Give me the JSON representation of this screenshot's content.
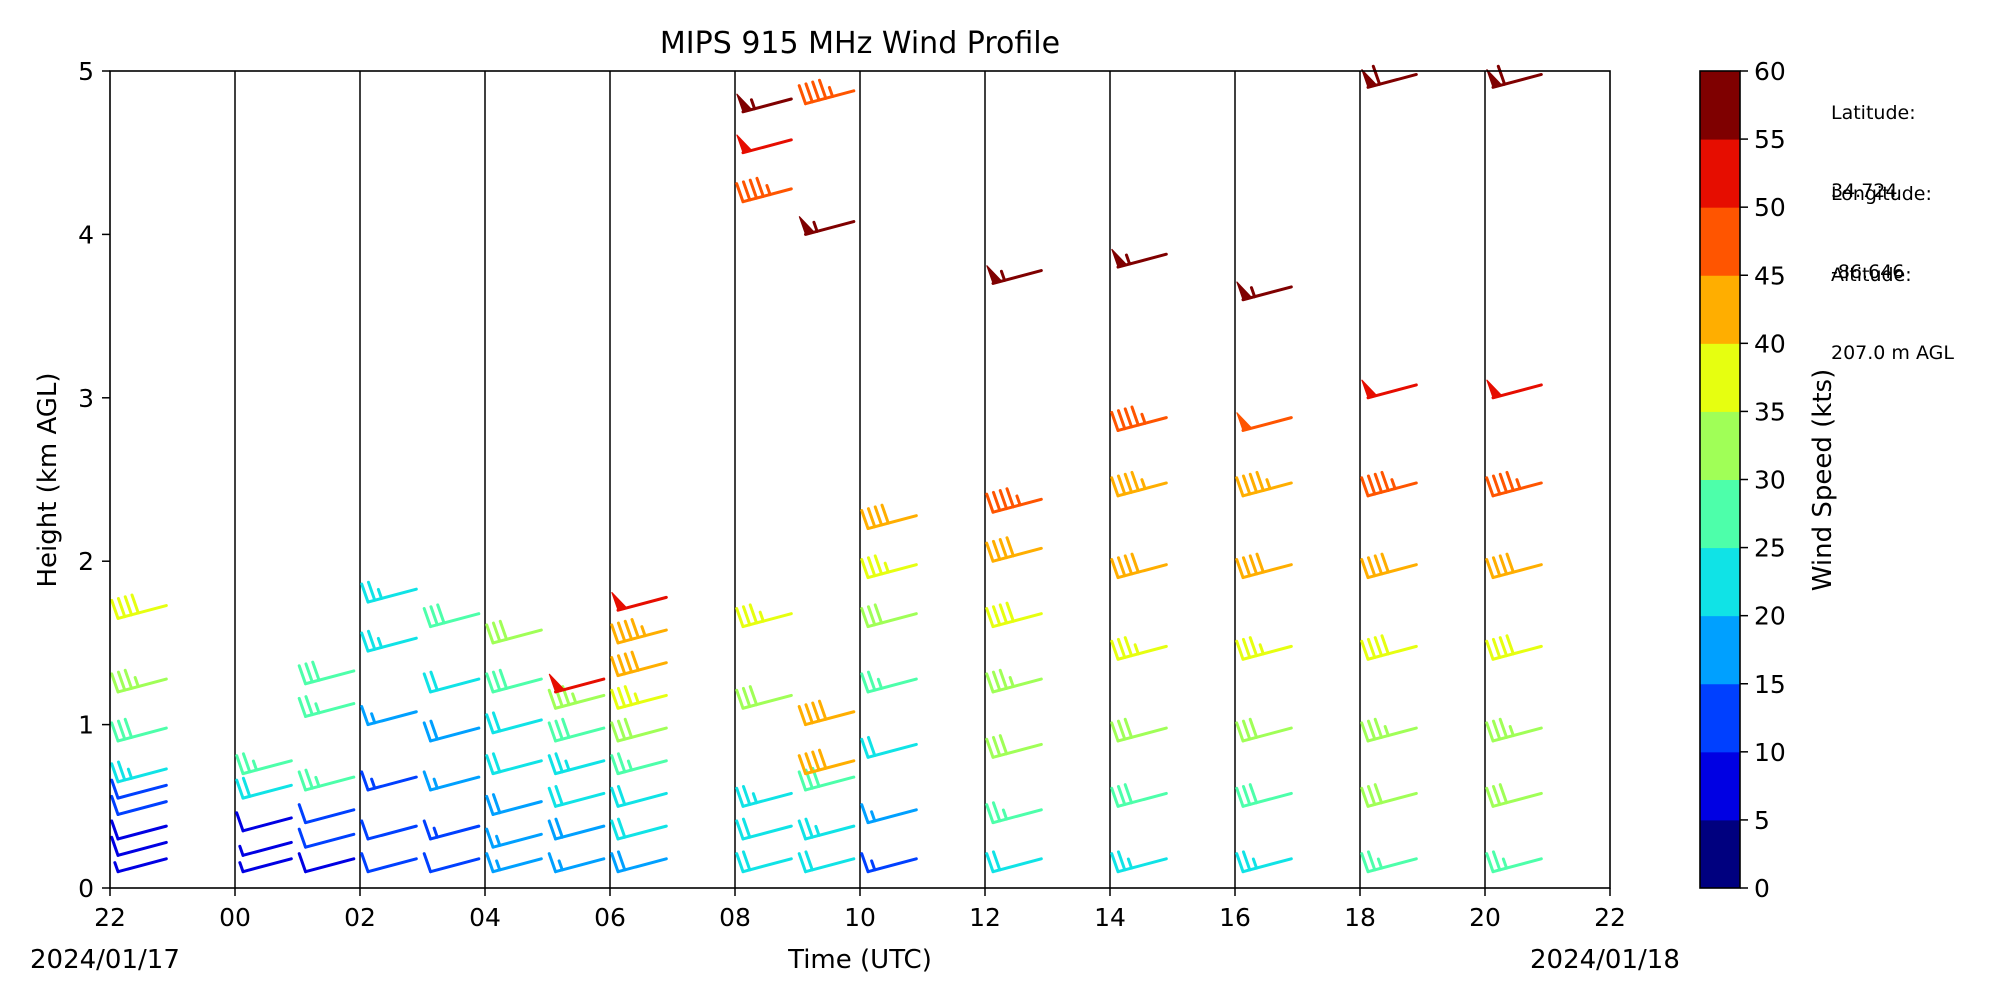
{
  "chart_data": {
    "type": "scatter",
    "title": "MIPS 915 MHz Wind Profile",
    "xlabel": "Time (UTC)",
    "ylabel": "Height (km AGL)",
    "x_ticks": [
      "22",
      "00",
      "02",
      "04",
      "06",
      "08",
      "10",
      "12",
      "14",
      "16",
      "18",
      "20",
      "22"
    ],
    "x_date_left": "2024/01/17",
    "x_date_right": "2024/01/18",
    "xlim": [
      "2024-01-17T22:00Z",
      "2024-01-18T22:00Z"
    ],
    "ylim": [
      0,
      5
    ],
    "y_ticks": [
      "0",
      "1",
      "2",
      "3",
      "4",
      "5"
    ],
    "vertical_gridlines": "hourly-pair (every 2 h)",
    "colorbar": {
      "label": "Wind Speed (kts)",
      "ticks": [
        "0",
        "5",
        "10",
        "15",
        "20",
        "25",
        "30",
        "35",
        "40",
        "45",
        "50",
        "55",
        "60"
      ],
      "colors": [
        "#00007f",
        "#0000e3",
        "#0040ff",
        "#00a0ff",
        "#10e3e6",
        "#4dffaa",
        "#a0ff57",
        "#e6ff10",
        "#ffae00",
        "#ff5500",
        "#e60d00",
        "#7f0000"
      ]
    },
    "series": [
      {
        "time_utc": "22:00",
        "speed_kts": [
          6,
          8,
          9,
          10,
          12,
          24,
          28,
          33,
          38
        ],
        "heights_km": [
          0.1,
          0.2,
          0.3,
          0.45,
          0.55,
          0.65,
          0.9,
          1.2,
          1.65
        ]
      },
      {
        "time_utc": "00:00",
        "speed_kts": [
          6,
          7,
          9,
          22,
          25
        ],
        "heights_km": [
          0.1,
          0.2,
          0.35,
          0.55,
          0.7
        ]
      },
      {
        "time_utc": "01:00",
        "speed_kts": [
          9,
          10,
          12,
          25,
          27,
          28
        ],
        "heights_km": [
          0.1,
          0.25,
          0.4,
          0.6,
          1.05,
          1.25
        ]
      },
      {
        "time_utc": "02:00",
        "speed_kts": [
          10,
          12,
          14,
          16,
          23,
          24
        ],
        "heights_km": [
          0.1,
          0.3,
          0.6,
          1.0,
          1.45,
          1.75
        ]
      },
      {
        "time_utc": "03:00",
        "speed_kts": [
          12,
          14,
          16,
          18,
          22,
          28
        ],
        "heights_km": [
          0.1,
          0.3,
          0.6,
          0.9,
          1.2,
          1.6
        ]
      },
      {
        "time_utc": "04:00",
        "speed_kts": [
          15,
          16,
          18,
          20,
          22,
          28,
          32
        ],
        "heights_km": [
          0.1,
          0.25,
          0.45,
          0.7,
          0.95,
          1.2,
          1.5
        ]
      },
      {
        "time_utc": "05:00",
        "speed_kts": [
          16,
          18,
          20,
          24,
          28,
          33,
          52
        ],
        "heights_km": [
          0.1,
          0.3,
          0.5,
          0.7,
          0.9,
          1.1,
          1.2
        ]
      },
      {
        "time_utc": "06:00",
        "speed_kts": [
          18,
          20,
          22,
          26,
          30,
          35,
          42,
          44,
          50
        ],
        "heights_km": [
          0.1,
          0.3,
          0.5,
          0.7,
          0.9,
          1.1,
          1.3,
          1.5,
          1.7
        ]
      },
      {
        "time_utc": "08:00",
        "speed_kts": [
          20,
          22,
          24,
          30,
          35,
          45,
          50,
          55
        ],
        "heights_km": [
          0.1,
          0.3,
          0.5,
          1.1,
          1.6,
          4.2,
          4.5,
          4.75
        ]
      },
      {
        "time_utc": "09:00",
        "speed_kts": [
          20,
          24,
          28,
          40,
          42,
          55,
          45
        ],
        "heights_km": [
          0.1,
          0.3,
          0.6,
          0.7,
          1.0,
          4.0,
          4.8
        ]
      },
      {
        "time_utc": "10:00",
        "speed_kts": [
          14,
          16,
          20,
          26,
          30,
          35,
          40
        ],
        "heights_km": [
          0.1,
          0.4,
          0.8,
          1.2,
          1.6,
          1.9,
          2.2
        ]
      },
      {
        "time_utc": "12:00",
        "speed_kts": [
          20,
          26,
          30,
          34,
          38,
          42,
          45,
          55
        ],
        "heights_km": [
          0.1,
          0.4,
          0.8,
          1.2,
          1.6,
          2.0,
          2.3,
          3.7
        ]
      },
      {
        "time_utc": "14:00",
        "speed_kts": [
          24,
          28,
          32,
          36,
          40,
          44,
          46,
          56
        ],
        "heights_km": [
          0.1,
          0.5,
          0.9,
          1.4,
          1.9,
          2.4,
          2.8,
          3.8
        ]
      },
      {
        "time_utc": "16:00",
        "speed_kts": [
          24,
          28,
          32,
          36,
          40,
          44,
          48,
          56
        ],
        "heights_km": [
          0.1,
          0.5,
          0.9,
          1.4,
          1.9,
          2.4,
          2.8,
          3.6
        ]
      },
      {
        "time_utc": "18:00",
        "speed_kts": [
          26,
          30,
          34,
          38,
          42,
          46,
          50,
          58
        ],
        "heights_km": [
          0.1,
          0.5,
          0.9,
          1.4,
          1.9,
          2.4,
          3.0,
          4.9
        ]
      },
      {
        "time_utc": "20:00",
        "speed_kts": [
          26,
          30,
          34,
          38,
          42,
          46,
          50,
          58
        ],
        "heights_km": [
          0.1,
          0.5,
          0.9,
          1.4,
          1.9,
          2.4,
          3.0,
          4.9
        ]
      }
    ]
  },
  "site_info": {
    "latitude_label": "Latitude:",
    "latitude_value": "34.724",
    "longitude_label": "Longitude:",
    "longitude_value": "-86.646",
    "altitude_label": "Altitude:",
    "altitude_value": "207.0 m AGL"
  }
}
